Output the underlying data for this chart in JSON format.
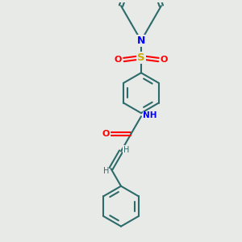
{
  "background_color": "#e8eae8",
  "bond_color": "#2d6b6b",
  "N_color": "#0000ff",
  "O_color": "#ff0000",
  "S_color": "#ccaa00",
  "lw": 1.5,
  "fig_width": 3.0,
  "fig_height": 3.0,
  "dpi": 100,
  "xlim": [
    -2.5,
    2.5
  ],
  "ylim": [
    -4.5,
    4.0
  ],
  "ring_r": 0.72,
  "dbl_off": 0.07
}
